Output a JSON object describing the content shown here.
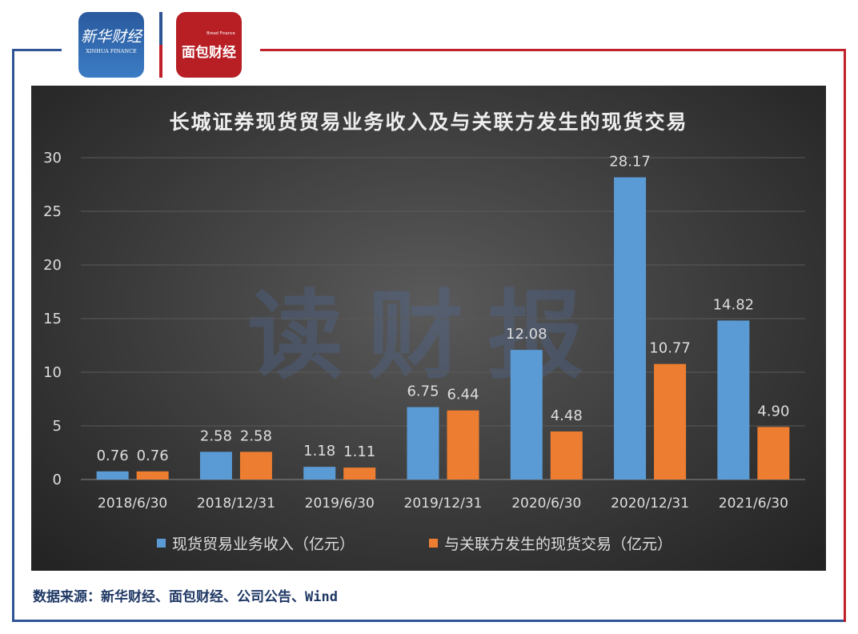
{
  "logos": {
    "left": {
      "text": "新华财经",
      "sub": "XINHUA FINANCE"
    },
    "right": {
      "text": "面包财经",
      "sub": "Bread Finance"
    }
  },
  "colors": {
    "blue": "#5b9bd5",
    "orange": "#ed7d31",
    "frame_blue": "#2f5597",
    "frame_red": "#c0202a"
  },
  "watermark": "读财报",
  "chart_data": {
    "type": "bar",
    "title": "长城证券现货贸易业务收入及与关联方发生的现货交易",
    "categories": [
      "2018/6/30",
      "2018/12/31",
      "2019/6/30",
      "2019/12/31",
      "2020/6/30",
      "2020/12/31",
      "2021/6/30"
    ],
    "series": [
      {
        "name": "现货贸易业务收入（亿元）",
        "values": [
          0.76,
          2.58,
          1.18,
          6.75,
          12.08,
          28.17,
          14.82
        ]
      },
      {
        "name": "与关联方发生的现货交易（亿元）",
        "values": [
          0.76,
          2.58,
          1.11,
          6.44,
          4.48,
          10.77,
          4.9
        ]
      }
    ],
    "yticks": [
      0,
      5,
      10,
      15,
      20,
      25,
      30
    ],
    "ylim": [
      0,
      30
    ],
    "grid": true,
    "legend": "bottom"
  },
  "source": "数据来源：新华财经、面包财经、公司公告、Wind"
}
